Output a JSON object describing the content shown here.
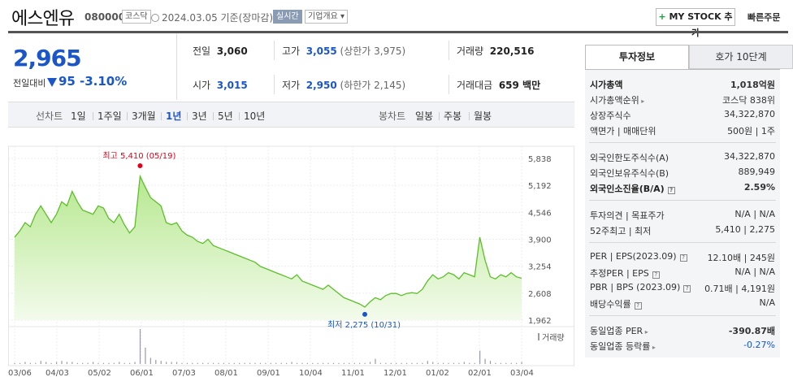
{
  "header": {
    "name": "에스엔유",
    "code": "080000",
    "market": "코스닥",
    "date": "2024.03.05 기준(장마감)",
    "live_badge": "실시간",
    "overview_badge": "기업개요 ▾",
    "mystock_label": "MY STOCK 추가",
    "quick_order": "빠른주문"
  },
  "price": {
    "current": "2,965",
    "change_label": "전일대비",
    "change": "95",
    "change_pct": "-3.10%",
    "direction": "down"
  },
  "quote": {
    "prev_close_label": "전일",
    "prev_close": "3,060",
    "high_label": "고가",
    "high": "3,055",
    "upper_limit": "(상한가 3,975)",
    "volume_label": "거래량",
    "volume": "220,516",
    "open_label": "시가",
    "open": "3,015",
    "low_label": "저가",
    "low": "2,950",
    "lower_limit": "(하한가 2,145)",
    "amount_label": "거래대금",
    "amount": "659 백만"
  },
  "period_bar": {
    "line_label": "선차트",
    "line_periods": [
      "1일",
      "1주일",
      "3개월",
      "1년",
      "3년",
      "5년",
      "10년"
    ],
    "active": "1년",
    "candle_label": "봉차트",
    "candle_periods": [
      "일봉",
      "주봉",
      "월봉"
    ]
  },
  "chart_data": {
    "type": "area",
    "y_ticks": [
      "5,838",
      "5,192",
      "4,546",
      "3,900",
      "3,254",
      "2,608",
      "1,962"
    ],
    "ylim": [
      1962,
      5838
    ],
    "x_ticks": [
      "03/06",
      "04/03",
      "05/02",
      "06/01",
      "07/03",
      "08/01",
      "09/01",
      "10/04",
      "11/01",
      "12/01",
      "01/02",
      "02/01",
      "03/04"
    ],
    "high_label": "최고 5,410 (05/19)",
    "high_value": 5410,
    "low_label": "최저 2,275 (10/31)",
    "low_value": 2275,
    "volume_label": "거래량",
    "colors": {
      "line": "#5cbf2a",
      "fill": "#cdeeb4",
      "high": "#e0001b",
      "low": "#1a56c9"
    },
    "values": [
      3950,
      4100,
      4300,
      4200,
      4500,
      4700,
      4500,
      4300,
      4500,
      4800,
      4700,
      5050,
      4800,
      4600,
      4550,
      4500,
      4700,
      4650,
      4400,
      4300,
      4500,
      4250,
      4050,
      4200,
      5410,
      5150,
      4900,
      4800,
      4700,
      4300,
      4250,
      4300,
      4100,
      4000,
      3950,
      3850,
      3800,
      3900,
      3750,
      3700,
      3650,
      3600,
      3550,
      3500,
      3450,
      3400,
      3350,
      3250,
      3200,
      3150,
      3100,
      3050,
      3000,
      2950,
      3050,
      2900,
      2850,
      2800,
      2750,
      2700,
      2800,
      2700,
      2600,
      2500,
      2450,
      2400,
      2350,
      2275,
      2400,
      2500,
      2450,
      2550,
      2600,
      2600,
      2550,
      2600,
      2620,
      2600,
      2700,
      2900,
      3050,
      2950,
      3000,
      3100,
      3050,
      2950,
      3100,
      3050,
      3000,
      3950,
      3400,
      3000,
      2950,
      3050,
      3000,
      3100,
      3000,
      2965
    ],
    "volumes": [
      1,
      1,
      2,
      1,
      1,
      3,
      2,
      1,
      2,
      3,
      2,
      2,
      1,
      1,
      1,
      2,
      1,
      1,
      1,
      1,
      2,
      1,
      1,
      2,
      34,
      16,
      6,
      4,
      3,
      2,
      2,
      2,
      1,
      1,
      1,
      1,
      1,
      1,
      1,
      1,
      1,
      1,
      1,
      1,
      1,
      1,
      1,
      1,
      1,
      1,
      1,
      1,
      1,
      2,
      1,
      1,
      1,
      1,
      1,
      1,
      1,
      1,
      1,
      1,
      1,
      1,
      1,
      1,
      2,
      5,
      1,
      1,
      1,
      1,
      1,
      1,
      1,
      1,
      1,
      3,
      2,
      1,
      1,
      1,
      1,
      1,
      2,
      1,
      1,
      13,
      5,
      3,
      1,
      1,
      1,
      1,
      1,
      2
    ]
  },
  "tabs": {
    "active": "투자정보",
    "inactive": "호가 10단계"
  },
  "info": {
    "market_cap_label": "시가총액",
    "market_cap": "1,018억원",
    "cap_rank_label": "시가총액순위",
    "cap_rank": "코스닥 838위",
    "shares_label": "상장주식수",
    "shares": "34,322,870",
    "par_label": "액면가 | 매매단위",
    "par": "500원 | 1주",
    "foreign_limit_label": "외국인한도주식수(A)",
    "foreign_limit": "34,322,870",
    "foreign_hold_label": "외국인보유주식수(B)",
    "foreign_hold": "889,949",
    "foreign_ratio_label": "외국인소진율(B/A)",
    "foreign_ratio": "2.59%",
    "opinion_label": "투자의견 | 목표주가",
    "opinion": "N/A | N/A",
    "range52_label": "52주최고 | 최저",
    "range52": "5,410 | 2,275",
    "per_label": "PER | EPS(2023.09)",
    "per": "12.10배 | 245원",
    "est_label": "추정PER | EPS",
    "est": "N/A | N/A",
    "pbr_label": "PBR | BPS (2023.09)",
    "pbr": "0.71배 | 4,191원",
    "div_label": "배당수익률",
    "div": "N/A",
    "sector_per_label": "동일업종 PER",
    "sector_per": "-390.87배",
    "sector_chg_label": "동일업종 등락률",
    "sector_chg": "-0.27%"
  }
}
